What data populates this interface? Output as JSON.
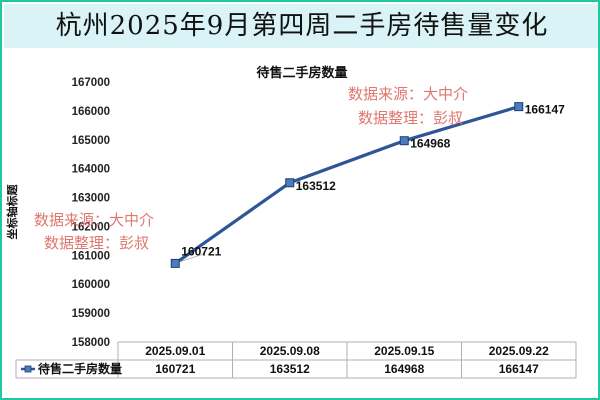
{
  "page_title": "杭州2025年9月第四周二手房待售量变化",
  "watermark": [
    "数据来源：大中介",
    "数据整理：彭叔"
  ],
  "chart_data": {
    "type": "line",
    "title": "待售二手房数量",
    "ylabel": "坐标轴标题",
    "categories": [
      "2025.09.01",
      "2025.09.08",
      "2025.09.15",
      "2025.09.22"
    ],
    "series": [
      {
        "name": "待售二手房数量",
        "values": [
          160721,
          163512,
          164968,
          166147
        ]
      }
    ],
    "ylim": [
      158000,
      167000
    ],
    "yticks": [
      158000,
      159000,
      160000,
      161000,
      162000,
      163000,
      164000,
      165000,
      166000,
      167000
    ],
    "grid": false,
    "legend": "data-table",
    "data_table": true,
    "colors": {
      "line": "#2e5597",
      "marker_fill": "#4a7dc0",
      "banner": "#d9f3f6",
      "border": "#1fc9a0",
      "watermark": "#e0766f"
    }
  }
}
